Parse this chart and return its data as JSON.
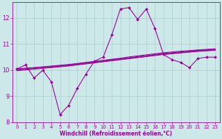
{
  "x": [
    0,
    1,
    2,
    3,
    4,
    5,
    6,
    7,
    8,
    9,
    10,
    11,
    12,
    13,
    14,
    15,
    16,
    17,
    18,
    19,
    20,
    21,
    22,
    23
  ],
  "line_jagged": [
    10.05,
    10.2,
    9.7,
    10.0,
    9.55,
    8.3,
    8.65,
    9.3,
    9.85,
    10.35,
    10.5,
    11.35,
    12.35,
    12.4,
    11.95,
    12.35,
    11.6,
    10.6,
    10.4,
    10.3,
    10.1,
    10.45,
    10.5,
    10.5
  ],
  "smooth1": [
    10.05,
    10.08,
    10.1,
    10.13,
    10.16,
    10.19,
    10.22,
    10.26,
    10.3,
    10.34,
    10.38,
    10.42,
    10.46,
    10.51,
    10.55,
    10.59,
    10.63,
    10.67,
    10.7,
    10.73,
    10.75,
    10.78,
    10.8,
    10.82
  ],
  "smooth2": [
    10.03,
    10.06,
    10.09,
    10.12,
    10.14,
    10.17,
    10.2,
    10.24,
    10.28,
    10.32,
    10.36,
    10.4,
    10.44,
    10.48,
    10.52,
    10.56,
    10.6,
    10.64,
    10.67,
    10.7,
    10.73,
    10.76,
    10.78,
    10.8
  ],
  "smooth3": [
    10.0,
    10.03,
    10.06,
    10.09,
    10.12,
    10.15,
    10.18,
    10.22,
    10.26,
    10.3,
    10.34,
    10.38,
    10.42,
    10.46,
    10.5,
    10.54,
    10.58,
    10.62,
    10.65,
    10.68,
    10.71,
    10.74,
    10.76,
    10.78
  ],
  "smooth4": [
    9.98,
    10.01,
    10.04,
    10.07,
    10.1,
    10.13,
    10.16,
    10.2,
    10.24,
    10.28,
    10.32,
    10.36,
    10.4,
    10.44,
    10.48,
    10.52,
    10.56,
    10.6,
    10.63,
    10.66,
    10.69,
    10.72,
    10.74,
    10.76
  ],
  "line_color": "#990099",
  "bg_color": "#cce8e8",
  "grid_color": "#aacccc",
  "xlabel": "Windchill (Refroidissement éolien,°C)",
  "ylim": [
    8.0,
    12.6
  ],
  "xlim": [
    -0.5,
    23.5
  ],
  "yticks": [
    8,
    9,
    10,
    11,
    12
  ],
  "xticks": [
    0,
    1,
    2,
    3,
    4,
    5,
    6,
    7,
    8,
    9,
    10,
    11,
    12,
    13,
    14,
    15,
    16,
    17,
    18,
    19,
    20,
    21,
    22,
    23
  ],
  "tick_fontsize": 5.0,
  "xlabel_fontsize": 5.5
}
